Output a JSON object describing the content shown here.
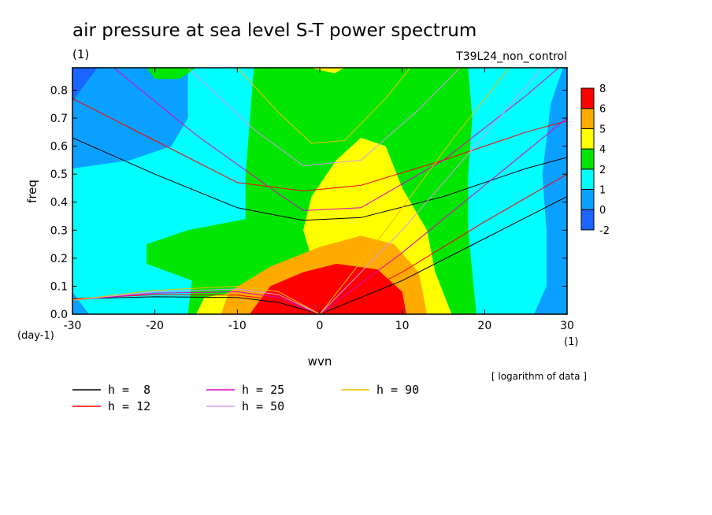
{
  "chart_data": {
    "type": "heatmap",
    "title": "air pressure at sea level S-T power spectrum",
    "title_units": "(1)",
    "subtitle_right": "T39L24_non_control",
    "xlabel": "wvn",
    "ylabel": "freq",
    "x_units": "(1)",
    "y_units": "(day-1)",
    "xlim": [
      -30,
      30
    ],
    "ylim": [
      0,
      0.88
    ],
    "x_ticks": [
      -30,
      -20,
      -10,
      0,
      10,
      20,
      30
    ],
    "x_tick_labels": [
      "-30",
      "-20",
      "-10",
      "0",
      "10",
      "20",
      "30"
    ],
    "y_ticks": [
      0,
      0.1,
      0.2,
      0.3,
      0.4,
      0.5,
      0.6,
      0.7,
      0.8
    ],
    "y_tick_labels": [
      "0.0",
      "0.1",
      "0.2",
      "0.3",
      "0.4",
      "0.5",
      "0.6",
      "0.7",
      "0.8"
    ],
    "note": "[ logarithm of data ]",
    "colorbar": {
      "levels": [
        "-2",
        "0",
        "1",
        "2",
        "4",
        "5",
        "6",
        "8"
      ],
      "colors": [
        "#1a64ff",
        "#0aa0ff",
        "#00ffff",
        "#00e600",
        "#ffff00",
        "#ffaa00",
        "#ff0000"
      ]
    },
    "contour_fields": [
      {
        "level": 0,
        "color": "#0aa0ff",
        "label": "0-1",
        "polygons": [
          [
            [
              -30,
              0
            ],
            [
              30,
              0
            ],
            [
              30,
              0.88
            ],
            [
              -30,
              0.88
            ]
          ]
        ]
      },
      {
        "level": 1,
        "color": "#00ffff",
        "label": "1-2",
        "polygons": [
          [
            [
              -30,
              0.52
            ],
            [
              -23,
              0.55
            ],
            [
              -18,
              0.6
            ],
            [
              -16,
              0.7
            ],
            [
              -16,
              0.88
            ],
            [
              -2,
              0.88
            ],
            [
              28,
              0.88
            ],
            [
              29.5,
              0.88
            ],
            [
              28,
              0.75
            ],
            [
              27,
              0.5
            ],
            [
              27.5,
              0.3
            ],
            [
              27.5,
              0.1
            ],
            [
              26,
              0.0
            ],
            [
              -28,
              0.0
            ],
            [
              -30,
              0.08
            ]
          ]
        ]
      },
      {
        "level": 2,
        "color": "#00e600",
        "label": "2-4",
        "polygons": [
          [
            [
              -16,
              0.0
            ],
            [
              -15.5,
              0.12
            ],
            [
              -21,
              0.18
            ],
            [
              -21,
              0.25
            ],
            [
              -16,
              0.3
            ],
            [
              -9,
              0.34
            ],
            [
              -9,
              0.5
            ],
            [
              -8,
              0.88
            ],
            [
              18,
              0.88
            ],
            [
              18.5,
              0.7
            ],
            [
              18,
              0.5
            ],
            [
              18,
              0.3
            ],
            [
              19,
              0.0
            ]
          ]
        ]
      },
      {
        "level": 4,
        "color": "#ffff00",
        "label": "4-5",
        "polygons": [
          [
            [
              -15,
              0.0
            ],
            [
              -14,
              0.06
            ],
            [
              -10,
              0.08
            ],
            [
              -2,
              0.12
            ],
            [
              -1,
              0.2
            ],
            [
              -2,
              0.3
            ],
            [
              -1,
              0.42
            ],
            [
              2,
              0.55
            ],
            [
              5,
              0.63
            ],
            [
              8,
              0.6
            ],
            [
              10,
              0.45
            ],
            [
              13,
              0.3
            ],
            [
              14,
              0.15
            ],
            [
              16,
              0.0
            ]
          ],
          [
            [
              -1.2,
              0.88
            ],
            [
              1.8,
              0.86
            ],
            [
              3,
              0.88
            ]
          ]
        ]
      },
      {
        "level": 5,
        "color": "#ffaa00",
        "label": "5-6",
        "polygons": [
          [
            [
              -12,
              0.0
            ],
            [
              -11,
              0.08
            ],
            [
              -6,
              0.17
            ],
            [
              0,
              0.24
            ],
            [
              5,
              0.28
            ],
            [
              9,
              0.25
            ],
            [
              12,
              0.15
            ],
            [
              13,
              0.0
            ]
          ]
        ]
      },
      {
        "level": 6,
        "color": "#ff0000",
        "label": "6-8",
        "polygons": [
          [
            [
              -8.5,
              0.0
            ],
            [
              -6,
              0.1
            ],
            [
              -2,
              0.15
            ],
            [
              2,
              0.18
            ],
            [
              7,
              0.16
            ],
            [
              10,
              0.08
            ],
            [
              10.5,
              0.0
            ]
          ]
        ]
      },
      {
        "level": 2,
        "color": "#00e600",
        "label": "2-4",
        "polygons": [
          [
            [
              -21,
              0.88
            ],
            [
              -15,
              0.88
            ],
            [
              -17,
              0.84
            ],
            [
              -20,
              0.84
            ]
          ]
        ]
      },
      {
        "level": -2,
        "color": "#1a64ff",
        "label": "-2-0",
        "polygons": [
          [
            [
              -30,
              0.76
            ],
            [
              -28.5,
              0.82
            ],
            [
              -27,
              0.88
            ],
            [
              -30,
              0.88
            ]
          ]
        ]
      }
    ],
    "dispersion_legend": [
      {
        "label": "h =  8",
        "color": "#000000"
      },
      {
        "label": "h = 12",
        "color": "#ff0000"
      },
      {
        "label": "h = 25",
        "color": "#e000c0"
      },
      {
        "label": "h = 50",
        "color": "#d898f0"
      },
      {
        "label": "h = 90",
        "color": "#f0c000"
      }
    ],
    "dispersion_curves": [
      {
        "h": 8,
        "color": "#000000",
        "rossby": [
          [
            -30,
            0.055
          ],
          [
            -20,
            0.062
          ],
          [
            -10,
            0.06
          ],
          [
            -5,
            0.042
          ],
          [
            0,
            0.0
          ]
        ],
        "inertia_gravity": [
          [
            -30,
            0.63
          ],
          [
            -20,
            0.5
          ],
          [
            -10,
            0.38
          ],
          [
            -2,
            0.335
          ],
          [
            5,
            0.345
          ],
          [
            15,
            0.42
          ],
          [
            25,
            0.52
          ],
          [
            30,
            0.56
          ]
        ],
        "kelvin": [
          [
            0,
            0.0
          ],
          [
            10,
            0.12
          ],
          [
            20,
            0.27
          ],
          [
            30,
            0.42
          ]
        ]
      },
      {
        "h": 12,
        "color": "#ff0000",
        "rossby": [
          [
            -30,
            0.055
          ],
          [
            -20,
            0.07
          ],
          [
            -10,
            0.068
          ],
          [
            -5,
            0.05
          ],
          [
            0,
            0.0
          ]
        ],
        "inertia_gravity": [
          [
            -30,
            0.77
          ],
          [
            -20,
            0.62
          ],
          [
            -10,
            0.47
          ],
          [
            -2,
            0.44
          ],
          [
            5,
            0.46
          ],
          [
            15,
            0.55
          ],
          [
            25,
            0.65
          ],
          [
            30,
            0.69
          ]
        ],
        "kelvin": [
          [
            0,
            0.0
          ],
          [
            10,
            0.15
          ],
          [
            20,
            0.33
          ],
          [
            30,
            0.5
          ]
        ]
      },
      {
        "h": 25,
        "color": "#e000c0",
        "rossby": [
          [
            -30,
            0.05
          ],
          [
            -20,
            0.075
          ],
          [
            -10,
            0.08
          ],
          [
            -5,
            0.06
          ],
          [
            0,
            0.0
          ]
        ],
        "inertia_gravity": [
          [
            -25,
            0.88
          ],
          [
            -15,
            0.64
          ],
          [
            -5,
            0.43
          ],
          [
            -2,
            0.37
          ],
          [
            5,
            0.38
          ],
          [
            15,
            0.55
          ],
          [
            25,
            0.78
          ],
          [
            29,
            0.88
          ]
        ],
        "kelvin": [
          [
            0,
            0.0
          ],
          [
            10,
            0.22
          ],
          [
            20,
            0.46
          ],
          [
            30,
            0.7
          ]
        ]
      },
      {
        "h": 50,
        "color": "#d898f0",
        "rossby": [
          [
            -30,
            0.05
          ],
          [
            -20,
            0.08
          ],
          [
            -10,
            0.09
          ],
          [
            -5,
            0.07
          ],
          [
            0,
            0.0
          ]
        ],
        "inertia_gravity": [
          [
            -16,
            0.88
          ],
          [
            -8,
            0.66
          ],
          [
            -2,
            0.53
          ],
          [
            5,
            0.55
          ],
          [
            12,
            0.73
          ],
          [
            17,
            0.88
          ]
        ],
        "kelvin": [
          [
            0,
            0.0
          ],
          [
            10,
            0.3
          ],
          [
            20,
            0.64
          ],
          [
            27,
            0.88
          ]
        ]
      },
      {
        "h": 90,
        "color": "#f0c000",
        "rossby": [
          [
            -30,
            0.05
          ],
          [
            -20,
            0.085
          ],
          [
            -10,
            0.1
          ],
          [
            -5,
            0.08
          ],
          [
            0,
            0.0
          ]
        ],
        "inertia_gravity": [
          [
            -10,
            0.88
          ],
          [
            -5,
            0.72
          ],
          [
            -1,
            0.61
          ],
          [
            3,
            0.62
          ],
          [
            8,
            0.77
          ],
          [
            11,
            0.88
          ]
        ],
        "kelvin": [
          [
            0,
            0.0
          ],
          [
            8,
            0.3
          ],
          [
            16,
            0.62
          ],
          [
            23,
            0.88
          ]
        ]
      }
    ]
  }
}
